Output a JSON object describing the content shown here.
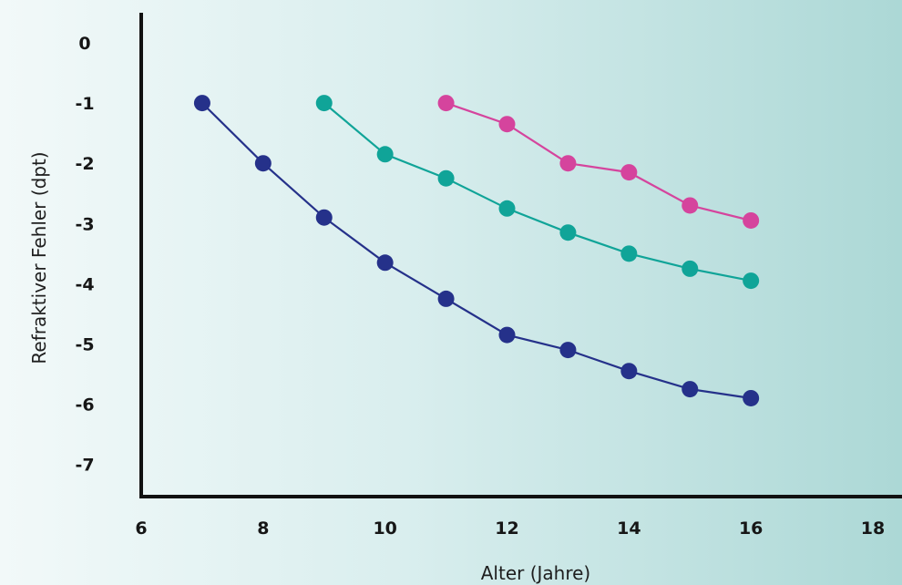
{
  "chart_data": {
    "type": "line",
    "title": "",
    "xlabel": "Alter (Jahre)",
    "ylabel": "Refraktiver Fehler (dpt)",
    "xlim": [
      6,
      18
    ],
    "ylim": [
      -7.5,
      0.5
    ],
    "x_ticks": [
      6,
      8,
      10,
      12,
      14,
      16,
      18
    ],
    "y_ticks": [
      0,
      -1,
      -2,
      -3,
      -4,
      -5,
      -6,
      -7
    ],
    "grid": false,
    "series": [
      {
        "color": "#25318a",
        "x": [
          7,
          8,
          9,
          10,
          11,
          12,
          13,
          14,
          15,
          16
        ],
        "y": [
          -1.0,
          -2.0,
          -2.9,
          -3.65,
          -4.25,
          -4.85,
          -5.1,
          -5.45,
          -5.75,
          -5.9
        ]
      },
      {
        "color": "#10a498",
        "x": [
          9,
          10,
          11,
          12,
          13,
          14,
          15,
          16
        ],
        "y": [
          -1.0,
          -1.85,
          -2.25,
          -2.75,
          -3.15,
          -3.5,
          -3.75,
          -3.95
        ]
      },
      {
        "color": "#d5449d",
        "x": [
          11,
          12,
          13,
          14,
          15,
          16
        ],
        "y": [
          -1.0,
          -1.35,
          -2.0,
          -2.15,
          -2.7,
          -2.95
        ]
      }
    ]
  }
}
